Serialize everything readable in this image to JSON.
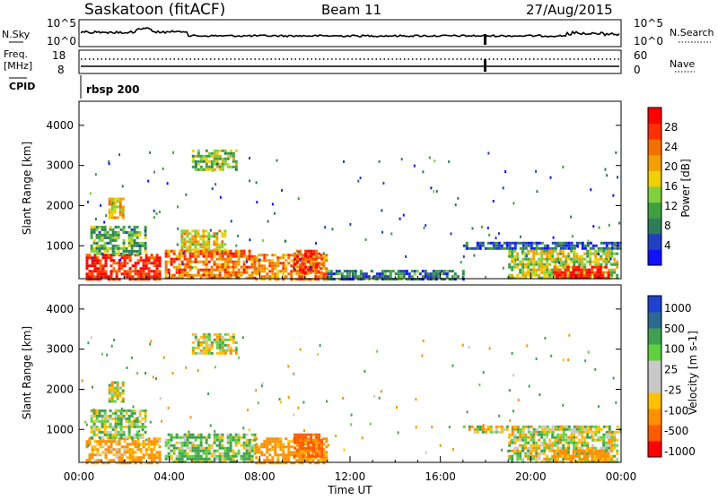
{
  "header": {
    "station": "Saskatoon (fitACF)",
    "beam": "Beam 11",
    "date": "27/Aug/2015"
  },
  "noise_panel": {
    "left_label": "N.Sky",
    "left_top_tick": "10^5",
    "left_bottom_tick": "10^0",
    "right_label": "N.Search",
    "right_top_tick": "10^5",
    "right_bottom_tick": "10^0"
  },
  "freq_panel": {
    "left_label_1": "Freq.",
    "left_label_2": "[MHz]",
    "left_top_tick": "18",
    "left_bottom_tick": "8",
    "right_label": "Nave",
    "right_top_tick": "60",
    "right_bottom_tick": "0"
  },
  "cpid": {
    "label": "CPID",
    "value": "rbsp 200"
  },
  "colors": {
    "power_scale": [
      "#1010ff",
      "#2040c0",
      "#2e7d5a",
      "#40a040",
      "#80d040",
      "#f0d000",
      "#f0a000",
      "#f07000",
      "#ff3000",
      "#ff0000"
    ],
    "velocity_scale": [
      "#ff0000",
      "#ff5a00",
      "#ff9000",
      "#ffc000",
      "#c8c8c8",
      "#c8c8c8",
      "#60d040",
      "#40a050",
      "#2a6a90",
      "#2040d0"
    ]
  },
  "chart_data": [
    {
      "type": "heatmap",
      "name_hint": "power",
      "ylabel": "Slant Range [km]",
      "yticks": [
        "1000",
        "2000",
        "3000",
        "4000"
      ],
      "ylim": [
        180,
        4600
      ],
      "xlim": [
        0,
        24
      ],
      "colorbar_label": "Power [dB]",
      "colorbar_ticks": [
        "4",
        "8",
        "12",
        "16",
        "20",
        "24",
        "28"
      ],
      "colorbar_range": [
        0,
        32
      ],
      "regions": [
        {
          "x": [
            0.3,
            3.6
          ],
          "y": [
            180,
            800
          ],
          "v": 29
        },
        {
          "x": [
            0.5,
            3.0
          ],
          "y": [
            800,
            1500
          ],
          "v": 12
        },
        {
          "x": [
            3.8,
            7.8
          ],
          "y": [
            180,
            900
          ],
          "v": 24
        },
        {
          "x": [
            4.5,
            6.5
          ],
          "y": [
            900,
            1400
          ],
          "v": 18
        },
        {
          "x": [
            5.0,
            7.0
          ],
          "y": [
            2900,
            3400
          ],
          "v": 14
        },
        {
          "x": [
            1.3,
            2.0
          ],
          "y": [
            1700,
            2200
          ],
          "v": 20
        },
        {
          "x": [
            7.8,
            11.0
          ],
          "y": [
            180,
            800
          ],
          "v": 22
        },
        {
          "x": [
            9.5,
            10.8
          ],
          "y": [
            300,
            900
          ],
          "v": 28
        },
        {
          "x": [
            11.0,
            17.0
          ],
          "y": [
            180,
            400
          ],
          "v": 8
        },
        {
          "x": [
            17.0,
            24.0
          ],
          "y": [
            900,
            1100
          ],
          "v": 6
        },
        {
          "x": [
            19.0,
            23.8
          ],
          "y": [
            180,
            900
          ],
          "v": 16
        },
        {
          "x": [
            21.0,
            23.5
          ],
          "y": [
            180,
            500
          ],
          "v": 30
        }
      ]
    },
    {
      "type": "heatmap",
      "name_hint": "velocity",
      "ylabel": "Slant Range [km]",
      "xlabel": "Time UT",
      "xticks": [
        "00:00",
        "04:00",
        "08:00",
        "12:00",
        "16:00",
        "20:00",
        "00:00"
      ],
      "yticks": [
        "1000",
        "2000",
        "3000",
        "4000"
      ],
      "ylim": [
        180,
        4600
      ],
      "xlim": [
        0,
        24
      ],
      "colorbar_label": "Velocity [m s-1]",
      "colorbar_ticks": [
        "1000",
        "500",
        "100",
        "25",
        "-25",
        "-100",
        "-500",
        "-1000"
      ],
      "regions": [
        {
          "x": [
            0.3,
            3.6
          ],
          "y": [
            180,
            800
          ],
          "v": -150
        },
        {
          "x": [
            0.5,
            3.0
          ],
          "y": [
            800,
            1500
          ],
          "v": 60
        },
        {
          "x": [
            3.8,
            7.8
          ],
          "y": [
            180,
            900
          ],
          "v": 80
        },
        {
          "x": [
            5.0,
            7.0
          ],
          "y": [
            2900,
            3400
          ],
          "v": 0
        },
        {
          "x": [
            1.3,
            2.0
          ],
          "y": [
            1700,
            2200
          ],
          "v": 0
        },
        {
          "x": [
            7.8,
            11.0
          ],
          "y": [
            180,
            800
          ],
          "v": -200
        },
        {
          "x": [
            9.5,
            10.8
          ],
          "y": [
            300,
            900
          ],
          "v": -600
        },
        {
          "x": [
            17.0,
            24.0
          ],
          "y": [
            900,
            1100
          ],
          "v": 0
        },
        {
          "x": [
            19.0,
            23.8
          ],
          "y": [
            180,
            900
          ],
          "v": 0
        },
        {
          "x": [
            21.0,
            23.5
          ],
          "y": [
            180,
            500
          ],
          "v": -200
        }
      ]
    }
  ]
}
